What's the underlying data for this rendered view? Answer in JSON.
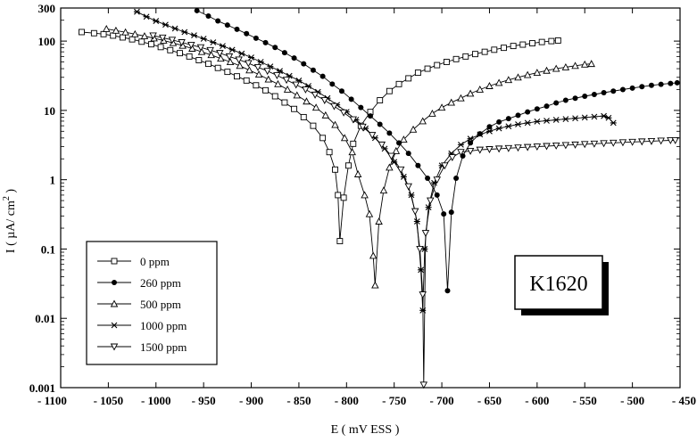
{
  "chart_data": {
    "type": "line",
    "xlabel": "E ( mV ESS )",
    "ylabel_main": "I ( µA/ cm",
    "ylabel_sup": "2",
    "ylabel_end": " )",
    "annotation": "K1620",
    "xlim": [
      -1100,
      -450
    ],
    "ylim": [
      0.001,
      300
    ],
    "y_scale": "log",
    "grid": false,
    "legend_position": "bottom-left",
    "x_ticks": [
      -1100,
      -1050,
      -1000,
      -950,
      -900,
      -850,
      -800,
      -750,
      -700,
      -650,
      -600,
      -550,
      -500,
      -450
    ],
    "x_tick_labels": [
      "- 1100",
      "- 1050",
      "- 1000",
      "- 950",
      "- 900",
      "- 850",
      "- 800",
      "- 750",
      "- 700",
      "- 650",
      "- 600",
      "- 550",
      "- 500",
      "- 450"
    ],
    "y_ticks": [
      0.001,
      0.01,
      0.1,
      1,
      10,
      100,
      300
    ],
    "y_tick_labels": [
      "0.001",
      "0.01",
      "0.1",
      "1",
      "10",
      "100",
      "300"
    ],
    "series": [
      {
        "name": "0 ppm",
        "marker": "square-open",
        "points": [
          [
            -1078,
            135
          ],
          [
            -1065,
            130
          ],
          [
            -1055,
            126
          ],
          [
            -1045,
            120
          ],
          [
            -1035,
            113
          ],
          [
            -1025,
            106
          ],
          [
            -1015,
            98
          ],
          [
            -1005,
            90
          ],
          [
            -995,
            82
          ],
          [
            -985,
            74
          ],
          [
            -975,
            67
          ],
          [
            -965,
            60
          ],
          [
            -955,
            53
          ],
          [
            -945,
            47
          ],
          [
            -935,
            41
          ],
          [
            -925,
            36
          ],
          [
            -915,
            31
          ],
          [
            -905,
            27
          ],
          [
            -895,
            23
          ],
          [
            -885,
            19.5
          ],
          [
            -875,
            16
          ],
          [
            -865,
            13
          ],
          [
            -855,
            10.5
          ],
          [
            -845,
            8
          ],
          [
            -835,
            6
          ],
          [
            -825,
            4
          ],
          [
            -818,
            2.5
          ],
          [
            -812,
            1.4
          ],
          [
            -809,
            0.6
          ],
          [
            -807,
            0.13
          ],
          [
            -803,
            0.55
          ],
          [
            -798,
            1.6
          ],
          [
            -793,
            3.3
          ],
          [
            -785,
            6
          ],
          [
            -775,
            9.5
          ],
          [
            -765,
            14
          ],
          [
            -755,
            19
          ],
          [
            -745,
            24
          ],
          [
            -735,
            29
          ],
          [
            -725,
            35
          ],
          [
            -715,
            40
          ],
          [
            -705,
            45
          ],
          [
            -695,
            50
          ],
          [
            -685,
            55
          ],
          [
            -675,
            60
          ],
          [
            -665,
            65
          ],
          [
            -655,
            70
          ],
          [
            -645,
            75
          ],
          [
            -635,
            80
          ],
          [
            -625,
            85
          ],
          [
            -615,
            89
          ],
          [
            -605,
            93
          ],
          [
            -595,
            97
          ],
          [
            -585,
            100
          ],
          [
            -578,
            102
          ]
        ]
      },
      {
        "name": "260 ppm",
        "marker": "circle-filled",
        "points": [
          [
            -957,
            275
          ],
          [
            -945,
            230
          ],
          [
            -935,
            195
          ],
          [
            -925,
            170
          ],
          [
            -915,
            148
          ],
          [
            -905,
            128
          ],
          [
            -895,
            110
          ],
          [
            -885,
            95
          ],
          [
            -875,
            81
          ],
          [
            -865,
            68
          ],
          [
            -855,
            57
          ],
          [
            -845,
            47
          ],
          [
            -835,
            38
          ],
          [
            -825,
            31
          ],
          [
            -815,
            24
          ],
          [
            -805,
            19
          ],
          [
            -795,
            14.5
          ],
          [
            -785,
            11
          ],
          [
            -775,
            8.3
          ],
          [
            -765,
            6.3
          ],
          [
            -755,
            4.7
          ],
          [
            -745,
            3.4
          ],
          [
            -735,
            2.4
          ],
          [
            -725,
            1.6
          ],
          [
            -715,
            1.05
          ],
          [
            -705,
            0.6
          ],
          [
            -698,
            0.32
          ],
          [
            -694,
            0.025
          ],
          [
            -690,
            0.34
          ],
          [
            -685,
            1.05
          ],
          [
            -678,
            2.2
          ],
          [
            -670,
            3.4
          ],
          [
            -660,
            4.6
          ],
          [
            -650,
            5.8
          ],
          [
            -640,
            6.8
          ],
          [
            -630,
            7.6
          ],
          [
            -620,
            8.5
          ],
          [
            -610,
            9.5
          ],
          [
            -600,
            10.5
          ],
          [
            -590,
            11.5
          ],
          [
            -580,
            12.8
          ],
          [
            -570,
            14
          ],
          [
            -560,
            15
          ],
          [
            -550,
            16
          ],
          [
            -540,
            17
          ],
          [
            -530,
            18
          ],
          [
            -520,
            19
          ],
          [
            -510,
            20
          ],
          [
            -500,
            21
          ],
          [
            -490,
            22
          ],
          [
            -480,
            23
          ],
          [
            -470,
            23.8
          ],
          [
            -460,
            24.5
          ],
          [
            -453,
            25
          ]
        ]
      },
      {
        "name": "500 ppm",
        "marker": "triangle-open",
        "points": [
          [
            -1052,
            150
          ],
          [
            -1042,
            142
          ],
          [
            -1032,
            134
          ],
          [
            -1022,
            126
          ],
          [
            -1012,
            118
          ],
          [
            -1002,
            110
          ],
          [
            -992,
            102
          ],
          [
            -982,
            94
          ],
          [
            -972,
            86
          ],
          [
            -962,
            78
          ],
          [
            -952,
            70
          ],
          [
            -942,
            63
          ],
          [
            -932,
            56
          ],
          [
            -922,
            50
          ],
          [
            -912,
            44
          ],
          [
            -902,
            38
          ],
          [
            -892,
            33
          ],
          [
            -882,
            28
          ],
          [
            -872,
            24
          ],
          [
            -862,
            20
          ],
          [
            -852,
            16.5
          ],
          [
            -842,
            13.5
          ],
          [
            -832,
            11
          ],
          [
            -822,
            8.5
          ],
          [
            -812,
            6.2
          ],
          [
            -802,
            4
          ],
          [
            -794,
            2.5
          ],
          [
            -788,
            1.2
          ],
          [
            -781,
            0.6
          ],
          [
            -776,
            0.32
          ],
          [
            -772,
            0.08
          ],
          [
            -770,
            0.03
          ],
          [
            -766,
            0.25
          ],
          [
            -761,
            0.7
          ],
          [
            -755,
            1.5
          ],
          [
            -748,
            2.6
          ],
          [
            -740,
            3.8
          ],
          [
            -730,
            5.3
          ],
          [
            -720,
            7
          ],
          [
            -710,
            9
          ],
          [
            -700,
            11
          ],
          [
            -690,
            13
          ],
          [
            -680,
            15
          ],
          [
            -670,
            17.5
          ],
          [
            -660,
            20
          ],
          [
            -650,
            22.5
          ],
          [
            -640,
            25
          ],
          [
            -630,
            27.5
          ],
          [
            -620,
            30
          ],
          [
            -610,
            32.5
          ],
          [
            -600,
            35
          ],
          [
            -590,
            37.5
          ],
          [
            -580,
            40
          ],
          [
            -570,
            42
          ],
          [
            -560,
            44
          ],
          [
            -550,
            46
          ],
          [
            -543,
            47
          ]
        ]
      },
      {
        "name": "1000 ppm",
        "marker": "star",
        "points": [
          [
            -1020,
            265
          ],
          [
            -1010,
            225
          ],
          [
            -1000,
            195
          ],
          [
            -990,
            172
          ],
          [
            -980,
            152
          ],
          [
            -970,
            135
          ],
          [
            -960,
            121
          ],
          [
            -950,
            108
          ],
          [
            -940,
            96
          ],
          [
            -930,
            85
          ],
          [
            -920,
            75
          ],
          [
            -910,
            66
          ],
          [
            -900,
            58
          ],
          [
            -890,
            50
          ],
          [
            -880,
            43
          ],
          [
            -870,
            37
          ],
          [
            -860,
            31.5
          ],
          [
            -850,
            27
          ],
          [
            -840,
            22.5
          ],
          [
            -830,
            18.5
          ],
          [
            -820,
            15
          ],
          [
            -810,
            12
          ],
          [
            -800,
            9.5
          ],
          [
            -790,
            7.3
          ],
          [
            -780,
            5.5
          ],
          [
            -770,
            4
          ],
          [
            -760,
            2.8
          ],
          [
            -750,
            1.8
          ],
          [
            -740,
            1.1
          ],
          [
            -732,
            0.6
          ],
          [
            -726,
            0.25
          ],
          [
            -722,
            0.05
          ],
          [
            -720,
            0.013
          ],
          [
            -718,
            0.1
          ],
          [
            -714,
            0.4
          ],
          [
            -708,
            0.9
          ],
          [
            -700,
            1.6
          ],
          [
            -690,
            2.4
          ],
          [
            -680,
            3.2
          ],
          [
            -670,
            3.9
          ],
          [
            -660,
            4.5
          ],
          [
            -650,
            5
          ],
          [
            -640,
            5.5
          ],
          [
            -630,
            5.9
          ],
          [
            -620,
            6.3
          ],
          [
            -610,
            6.6
          ],
          [
            -600,
            6.9
          ],
          [
            -590,
            7.1
          ],
          [
            -580,
            7.3
          ],
          [
            -570,
            7.5
          ],
          [
            -560,
            7.7
          ],
          [
            -550,
            7.9
          ],
          [
            -540,
            8.1
          ],
          [
            -530,
            8.3
          ],
          [
            -525,
            7.8
          ],
          [
            -520,
            6.6
          ]
        ]
      },
      {
        "name": "1500 ppm",
        "marker": "triangle-down-open",
        "points": [
          [
            -1003,
            120
          ],
          [
            -993,
            112
          ],
          [
            -983,
            104
          ],
          [
            -973,
            96
          ],
          [
            -963,
            88
          ],
          [
            -953,
            81
          ],
          [
            -943,
            74
          ],
          [
            -933,
            67
          ],
          [
            -923,
            60
          ],
          [
            -913,
            54
          ],
          [
            -903,
            48
          ],
          [
            -893,
            42
          ],
          [
            -883,
            37
          ],
          [
            -873,
            32
          ],
          [
            -863,
            27.5
          ],
          [
            -853,
            23.5
          ],
          [
            -843,
            20
          ],
          [
            -833,
            16.8
          ],
          [
            -823,
            14
          ],
          [
            -813,
            11.5
          ],
          [
            -803,
            9.3
          ],
          [
            -793,
            7.4
          ],
          [
            -783,
            5.8
          ],
          [
            -773,
            4.4
          ],
          [
            -763,
            3.2
          ],
          [
            -753,
            2.2
          ],
          [
            -743,
            1.4
          ],
          [
            -735,
            0.8
          ],
          [
            -728,
            0.35
          ],
          [
            -723,
            0.1
          ],
          [
            -720,
            0.022
          ],
          [
            -719,
            0.0011
          ],
          [
            -717,
            0.17
          ],
          [
            -712,
            0.5
          ],
          [
            -705,
            1
          ],
          [
            -697,
            1.6
          ],
          [
            -689,
            2.1
          ],
          [
            -680,
            2.5
          ],
          [
            -670,
            2.6
          ],
          [
            -660,
            2.7
          ],
          [
            -650,
            2.75
          ],
          [
            -640,
            2.8
          ],
          [
            -630,
            2.85
          ],
          [
            -620,
            2.9
          ],
          [
            -610,
            2.95
          ],
          [
            -600,
            3
          ],
          [
            -590,
            3.05
          ],
          [
            -580,
            3.1
          ],
          [
            -570,
            3.15
          ],
          [
            -560,
            3.2
          ],
          [
            -550,
            3.25
          ],
          [
            -540,
            3.3
          ],
          [
            -530,
            3.35
          ],
          [
            -520,
            3.4
          ],
          [
            -510,
            3.45
          ],
          [
            -500,
            3.5
          ],
          [
            -490,
            3.55
          ],
          [
            -480,
            3.6
          ],
          [
            -470,
            3.65
          ],
          [
            -460,
            3.7
          ],
          [
            -455,
            3.7
          ]
        ]
      }
    ]
  }
}
